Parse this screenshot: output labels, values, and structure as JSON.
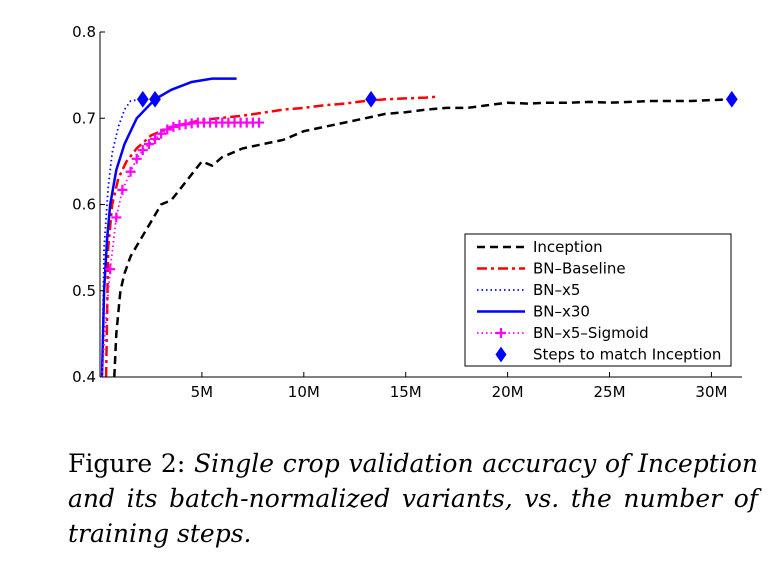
{
  "chart_data": {
    "type": "line",
    "title": "",
    "xlabel": "",
    "ylabel": "",
    "xlim": [
      0,
      31500000
    ],
    "ylim": [
      0.4,
      0.8
    ],
    "x_ticks": [
      {
        "value": 5000000,
        "label": "5M"
      },
      {
        "value": 10000000,
        "label": "10M"
      },
      {
        "value": 15000000,
        "label": "15M"
      },
      {
        "value": 20000000,
        "label": "20M"
      },
      {
        "value": 25000000,
        "label": "25M"
      },
      {
        "value": 30000000,
        "label": "30M"
      }
    ],
    "y_ticks": [
      {
        "value": 0.4,
        "label": "0.4"
      },
      {
        "value": 0.5,
        "label": "0.5"
      },
      {
        "value": 0.6,
        "label": "0.6"
      },
      {
        "value": 0.7,
        "label": "0.7"
      },
      {
        "value": 0.8,
        "label": "0.8"
      }
    ],
    "grid": false,
    "legend_position": "lower-right",
    "series": [
      {
        "name": "Inception",
        "color": "#000000",
        "style": "dashed",
        "points": [
          [
            700000,
            0.4
          ],
          [
            800000,
            0.45
          ],
          [
            1000000,
            0.5
          ],
          [
            1200000,
            0.52
          ],
          [
            1500000,
            0.54
          ],
          [
            2000000,
            0.56
          ],
          [
            2500000,
            0.58
          ],
          [
            3000000,
            0.6
          ],
          [
            3500000,
            0.605
          ],
          [
            4000000,
            0.62
          ],
          [
            4500000,
            0.635
          ],
          [
            5000000,
            0.65
          ],
          [
            5500000,
            0.645
          ],
          [
            6000000,
            0.655
          ],
          [
            7000000,
            0.665
          ],
          [
            8000000,
            0.67
          ],
          [
            9000000,
            0.675
          ],
          [
            10000000,
            0.685
          ],
          [
            11000000,
            0.69
          ],
          [
            12000000,
            0.695
          ],
          [
            13000000,
            0.7
          ],
          [
            14000000,
            0.705
          ],
          [
            15000000,
            0.707
          ],
          [
            16000000,
            0.71
          ],
          [
            17000000,
            0.712
          ],
          [
            18000000,
            0.712
          ],
          [
            19000000,
            0.715
          ],
          [
            20000000,
            0.718
          ],
          [
            21000000,
            0.717
          ],
          [
            22000000,
            0.718
          ],
          [
            23000000,
            0.718
          ],
          [
            24000000,
            0.719
          ],
          [
            25000000,
            0.718
          ],
          [
            26000000,
            0.719
          ],
          [
            27000000,
            0.72
          ],
          [
            28000000,
            0.72
          ],
          [
            29000000,
            0.72
          ],
          [
            30000000,
            0.721
          ],
          [
            31000000,
            0.722
          ]
        ]
      },
      {
        "name": "BN–Baseline",
        "color": "#ff0000",
        "style": "dashdot",
        "points": [
          [
            300000,
            0.4
          ],
          [
            400000,
            0.55
          ],
          [
            600000,
            0.6
          ],
          [
            900000,
            0.63
          ],
          [
            1300000,
            0.65
          ],
          [
            1800000,
            0.665
          ],
          [
            2500000,
            0.68
          ],
          [
            3500000,
            0.69
          ],
          [
            5000000,
            0.698
          ],
          [
            7000000,
            0.703
          ],
          [
            9000000,
            0.71
          ],
          [
            10000000,
            0.712
          ],
          [
            11000000,
            0.715
          ],
          [
            12000000,
            0.717
          ],
          [
            13000000,
            0.72
          ],
          [
            14000000,
            0.722
          ],
          [
            15000000,
            0.723
          ],
          [
            16000000,
            0.724
          ],
          [
            16500000,
            0.725
          ]
        ]
      },
      {
        "name": "BN–x5",
        "color": "#0000ff",
        "style": "dotted",
        "points": [
          [
            100000,
            0.4
          ],
          [
            200000,
            0.55
          ],
          [
            400000,
            0.62
          ],
          [
            600000,
            0.66
          ],
          [
            900000,
            0.69
          ],
          [
            1200000,
            0.71
          ],
          [
            1500000,
            0.72
          ],
          [
            2000000,
            0.722
          ]
        ]
      },
      {
        "name": "BN–x30",
        "color": "#0000ff",
        "style": "solid",
        "points": [
          [
            100000,
            0.4
          ],
          [
            200000,
            0.5
          ],
          [
            350000,
            0.56
          ],
          [
            500000,
            0.6
          ],
          [
            800000,
            0.64
          ],
          [
            1200000,
            0.67
          ],
          [
            1800000,
            0.7
          ],
          [
            2700000,
            0.722
          ],
          [
            3500000,
            0.733
          ],
          [
            4500000,
            0.742
          ],
          [
            5500000,
            0.746
          ],
          [
            6700000,
            0.746
          ]
        ]
      },
      {
        "name": "BN–x5–Sigmoid",
        "color": "#ff00ff",
        "style": "dotted-plus",
        "points": [
          [
            100000,
            0.4
          ],
          [
            300000,
            0.47
          ],
          [
            500000,
            0.525
          ],
          [
            800000,
            0.585
          ],
          [
            1100000,
            0.617
          ],
          [
            1500000,
            0.638
          ],
          [
            1800000,
            0.653
          ],
          [
            2100000,
            0.663
          ],
          [
            2400000,
            0.67
          ],
          [
            2700000,
            0.676
          ],
          [
            3000000,
            0.682
          ],
          [
            3300000,
            0.687
          ],
          [
            3600000,
            0.69
          ],
          [
            3900000,
            0.692
          ],
          [
            4200000,
            0.693
          ],
          [
            4500000,
            0.694
          ],
          [
            4800000,
            0.695
          ],
          [
            5100000,
            0.695
          ],
          [
            5400000,
            0.695
          ],
          [
            5700000,
            0.695
          ],
          [
            6000000,
            0.695
          ],
          [
            6300000,
            0.695
          ],
          [
            6600000,
            0.695
          ],
          [
            6900000,
            0.695
          ],
          [
            7200000,
            0.695
          ],
          [
            7500000,
            0.695
          ],
          [
            7800000,
            0.695
          ]
        ]
      },
      {
        "name": "Steps to match Inception",
        "color": "#0000ff",
        "style": "diamond-markers",
        "points": [
          [
            2100000,
            0.722
          ],
          [
            2700000,
            0.722
          ],
          [
            13300000,
            0.722
          ],
          [
            31000000,
            0.722
          ]
        ]
      }
    ]
  },
  "caption": {
    "label": "Figure 2:",
    "text": "Single crop validation accuracy of Inception and its batch-normalized variants, vs.  the number of training steps."
  }
}
